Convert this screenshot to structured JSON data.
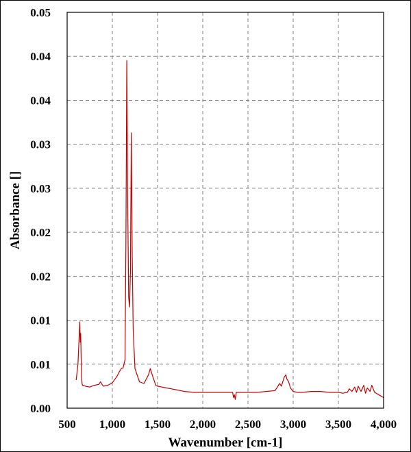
{
  "chart_data": {
    "type": "line",
    "title": "",
    "xlabel": "Wavenumber [cm-1]",
    "ylabel": "Absorbance []",
    "xlim": [
      500,
      4000
    ],
    "ylim": [
      0,
      0.045
    ],
    "x_ticks": [
      500,
      1000,
      1500,
      2000,
      2500,
      3000,
      3500,
      4000
    ],
    "x_tick_labels": [
      "500",
      "1,000",
      "1,500",
      "2,000",
      "2,500",
      "3,000",
      "3,500",
      "4,000"
    ],
    "y_ticks": [
      0,
      0.005,
      0.01,
      0.015,
      0.02,
      0.025,
      0.03,
      0.035,
      0.04,
      0.045
    ],
    "y_tick_labels": [
      "0.00",
      "0.01",
      "0.01",
      "0.02",
      "0.02",
      "0.03",
      "0.03",
      "0.04",
      "0.04",
      "0.05"
    ],
    "grid": true,
    "legend": "none",
    "colors": {
      "series": "#c00000",
      "grid": "#808080",
      "axis": "#000000"
    },
    "series": [
      {
        "values_x": [
          600,
          620,
          640,
          645,
          650,
          655,
          660,
          665,
          670,
          680,
          700,
          750,
          800,
          850,
          870,
          880,
          900,
          950,
          1000,
          1050,
          1080,
          1100,
          1120,
          1140,
          1150,
          1160,
          1170,
          1180,
          1190,
          1200,
          1210,
          1220,
          1230,
          1250,
          1300,
          1350,
          1400,
          1420,
          1450,
          1480,
          1500,
          1550,
          1600,
          1650,
          1700,
          1750,
          1800,
          1900,
          2000,
          2100,
          2200,
          2300,
          2330,
          2340,
          2350,
          2360,
          2370,
          2380,
          2400,
          2500,
          2600,
          2700,
          2800,
          2850,
          2870,
          2900,
          2920,
          2930,
          2950,
          2970,
          3000,
          3050,
          3100,
          3200,
          3300,
          3400,
          3500,
          3550,
          3600,
          3620,
          3650,
          3680,
          3700,
          3720,
          3750,
          3780,
          3800,
          3820,
          3850,
          3870,
          3900,
          3950,
          4000
        ],
        "values_y": [
          0.0032,
          0.005,
          0.0098,
          0.0075,
          0.0085,
          0.0055,
          0.0035,
          0.0028,
          0.0026,
          0.0026,
          0.0025,
          0.0024,
          0.0026,
          0.0027,
          0.003,
          0.0028,
          0.0025,
          0.0026,
          0.0029,
          0.0036,
          0.0042,
          0.0045,
          0.0046,
          0.0055,
          0.0185,
          0.0395,
          0.024,
          0.0126,
          0.0115,
          0.0155,
          0.0313,
          0.0175,
          0.009,
          0.0045,
          0.003,
          0.0028,
          0.0038,
          0.0045,
          0.0035,
          0.0026,
          0.0025,
          0.0024,
          0.0023,
          0.0022,
          0.0021,
          0.002,
          0.0019,
          0.0018,
          0.0018,
          0.0018,
          0.0018,
          0.0018,
          0.0018,
          0.0012,
          0.0015,
          0.001,
          0.0018,
          0.0018,
          0.0018,
          0.0018,
          0.0018,
          0.0019,
          0.002,
          0.0028,
          0.0025,
          0.0035,
          0.0038,
          0.0033,
          0.003,
          0.0023,
          0.0019,
          0.0018,
          0.0018,
          0.0019,
          0.0019,
          0.0018,
          0.0018,
          0.0017,
          0.0018,
          0.0022,
          0.0019,
          0.0024,
          0.0018,
          0.0025,
          0.0019,
          0.0026,
          0.0017,
          0.0023,
          0.0019,
          0.0026,
          0.0018,
          0.0015,
          0.0012
        ]
      }
    ]
  }
}
